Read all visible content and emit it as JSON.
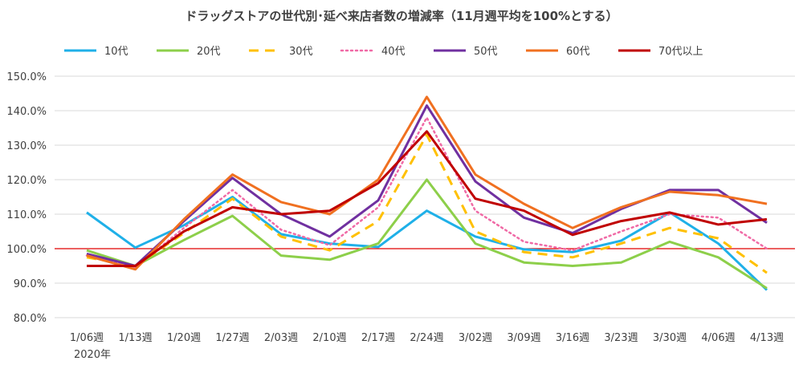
{
  "chart_data": {
    "type": "line",
    "title": "ドラッグストアの世代別･延べ来店者数の増減率（11月週平均を100%とする）",
    "xlabel": "",
    "ylabel": "",
    "x_note": "2020年",
    "categories": [
      "1/06週",
      "1/13週",
      "1/20週",
      "1/27週",
      "2/03週",
      "2/10週",
      "2/17週",
      "2/24週",
      "3/02週",
      "3/09週",
      "3/16週",
      "3/23週",
      "3/30週",
      "4/06週",
      "4/13週"
    ],
    "ylim": [
      80,
      150
    ],
    "yticks": [
      "80.0%",
      "90.0%",
      "100.0%",
      "110.0%",
      "120.0%",
      "130.0%",
      "140.0%",
      "150.0%"
    ],
    "grid": true,
    "legend_position": "top",
    "reference_line": {
      "value": 100,
      "color": "#e00000"
    },
    "series": [
      {
        "name": "10代",
        "color": "#1fb0e8",
        "dash": "solid",
        "values": [
          110.5,
          100.3,
          106.8,
          115.0,
          104.2,
          101.5,
          100.5,
          111.0,
          103.5,
          99.8,
          99.0,
          102.3,
          110.5,
          101.5,
          88.0
        ]
      },
      {
        "name": "20代",
        "color": "#8dcf4a",
        "dash": "solid",
        "values": [
          99.5,
          95.0,
          102.5,
          109.5,
          98.0,
          96.8,
          101.5,
          120.0,
          101.5,
          96.0,
          95.0,
          96.0,
          102.0,
          97.5,
          88.5
        ]
      },
      {
        "name": "30代",
        "color": "#ffc000",
        "dash": "dashed",
        "values": [
          97.5,
          95.0,
          104.5,
          114.5,
          103.5,
          99.5,
          108.0,
          133.0,
          105.0,
          99.0,
          97.5,
          101.5,
          106.0,
          103.0,
          93.0
        ]
      },
      {
        "name": "40代",
        "color": "#f06aa6",
        "dash": "dotted",
        "values": [
          98.0,
          94.5,
          106.0,
          117.0,
          105.5,
          101.0,
          112.0,
          138.0,
          111.0,
          102.0,
          99.5,
          105.0,
          110.0,
          109.0,
          100.0
        ]
      },
      {
        "name": "50代",
        "color": "#7030a0",
        "dash": "solid",
        "values": [
          98.5,
          95.0,
          108.0,
          120.5,
          110.0,
          103.5,
          114.0,
          141.5,
          119.5,
          109.0,
          104.5,
          111.5,
          117.0,
          117.0,
          107.5
        ]
      },
      {
        "name": "60代",
        "color": "#f07020",
        "dash": "solid",
        "values": [
          98.0,
          94.0,
          108.5,
          121.5,
          113.5,
          110.0,
          120.0,
          144.0,
          121.5,
          113.0,
          106.0,
          112.0,
          116.5,
          115.5,
          113.0
        ]
      },
      {
        "name": "70代以上",
        "color": "#c00000",
        "dash": "solid",
        "values": [
          95.0,
          95.0,
          105.0,
          112.0,
          110.0,
          111.0,
          119.0,
          134.0,
          114.5,
          111.0,
          104.0,
          108.0,
          110.5,
          107.0,
          108.5
        ]
      }
    ]
  }
}
